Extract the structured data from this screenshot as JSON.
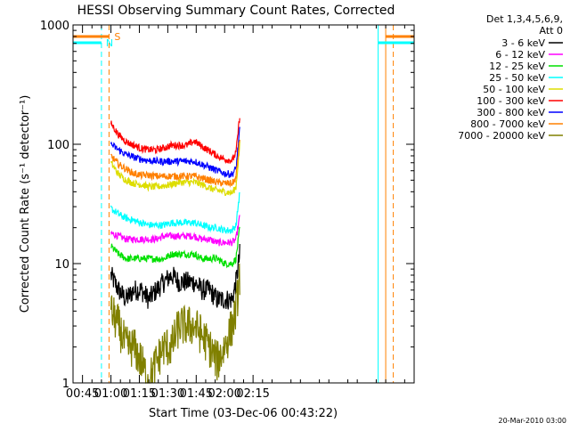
{
  "chart_data": {
    "type": "line",
    "title": "HESSI Observing Summary Count Rates, Corrected",
    "xlabel": "Start Time (03-Dec-06 00:43:22)",
    "ylabel": "Corrected Count Rate (s⁻¹ detector⁻¹)",
    "y_scale": "log",
    "ylim": [
      1,
      1000
    ],
    "xlim_minutes": [
      40,
      220
    ],
    "x_ticks": [
      {
        "label": "00:45",
        "minutes": 45
      },
      {
        "label": "01:00",
        "minutes": 60
      },
      {
        "label": "01:15",
        "minutes": 75
      },
      {
        "label": "01:30",
        "minutes": 90
      },
      {
        "label": "01:45",
        "minutes": 105
      },
      {
        "label": "02:00",
        "minutes": 120
      },
      {
        "label": "02:15",
        "minutes": 135
      }
    ],
    "y_ticks": [
      {
        "label": "1",
        "value": 1
      },
      {
        "label": "10",
        "value": 10
      },
      {
        "label": "100",
        "value": 100
      },
      {
        "label": "1000",
        "value": 1000
      }
    ],
    "legend_header": [
      "Det 1,3,4,5,6,9,",
      "Att 0"
    ],
    "legend_position": "right",
    "grid": false,
    "footer_text": "20-Mar-2010 03:00",
    "flags": {
      "saa_letter": "S",
      "night_letter": "N"
    },
    "series": [
      {
        "name": "3 - 6 keV",
        "color": "#000000",
        "points": [
          [
            60,
            8
          ],
          [
            64,
            6
          ],
          [
            68,
            5
          ],
          [
            72,
            6
          ],
          [
            76,
            6
          ],
          [
            80,
            5
          ],
          [
            84,
            6
          ],
          [
            88,
            7
          ],
          [
            92,
            8
          ],
          [
            96,
            7
          ],
          [
            100,
            7
          ],
          [
            104,
            7
          ],
          [
            108,
            6
          ],
          [
            112,
            6
          ],
          [
            116,
            5
          ],
          [
            120,
            5
          ],
          [
            124,
            5
          ],
          [
            126,
            7
          ],
          [
            128,
            12
          ]
        ]
      },
      {
        "name": "6 - 12 keV",
        "color": "#ff00ff",
        "points": [
          [
            60,
            18
          ],
          [
            64,
            17
          ],
          [
            68,
            16
          ],
          [
            72,
            16
          ],
          [
            76,
            16
          ],
          [
            80,
            16
          ],
          [
            84,
            16
          ],
          [
            88,
            17
          ],
          [
            92,
            17
          ],
          [
            96,
            17
          ],
          [
            100,
            17
          ],
          [
            104,
            17
          ],
          [
            108,
            16
          ],
          [
            112,
            16
          ],
          [
            116,
            15
          ],
          [
            120,
            15
          ],
          [
            124,
            15
          ],
          [
            126,
            16
          ],
          [
            128,
            25
          ]
        ]
      },
      {
        "name": "12 - 25 keV",
        "color": "#00e000",
        "points": [
          [
            60,
            14
          ],
          [
            64,
            12
          ],
          [
            68,
            11
          ],
          [
            72,
            11
          ],
          [
            76,
            11
          ],
          [
            80,
            11
          ],
          [
            84,
            11
          ],
          [
            88,
            11
          ],
          [
            92,
            12
          ],
          [
            96,
            12
          ],
          [
            100,
            12
          ],
          [
            104,
            12
          ],
          [
            108,
            11
          ],
          [
            112,
            11
          ],
          [
            116,
            11
          ],
          [
            120,
            10
          ],
          [
            124,
            10
          ],
          [
            126,
            11
          ],
          [
            128,
            20
          ]
        ]
      },
      {
        "name": "25 - 50 keV",
        "color": "#00ffff",
        "points": [
          [
            60,
            29
          ],
          [
            64,
            26
          ],
          [
            68,
            24
          ],
          [
            72,
            23
          ],
          [
            76,
            22
          ],
          [
            80,
            21
          ],
          [
            84,
            21
          ],
          [
            88,
            21
          ],
          [
            92,
            22
          ],
          [
            96,
            22
          ],
          [
            100,
            22
          ],
          [
            104,
            22
          ],
          [
            108,
            21
          ],
          [
            112,
            20
          ],
          [
            116,
            20
          ],
          [
            120,
            19
          ],
          [
            124,
            19
          ],
          [
            126,
            21
          ],
          [
            128,
            40
          ]
        ]
      },
      {
        "name": "50 - 100 keV",
        "color": "#dddd00",
        "points": [
          [
            60,
            70
          ],
          [
            64,
            56
          ],
          [
            68,
            50
          ],
          [
            72,
            47
          ],
          [
            76,
            46
          ],
          [
            80,
            44
          ],
          [
            84,
            44
          ],
          [
            88,
            45
          ],
          [
            92,
            46
          ],
          [
            96,
            48
          ],
          [
            100,
            48
          ],
          [
            104,
            48
          ],
          [
            108,
            46
          ],
          [
            112,
            43
          ],
          [
            116,
            41
          ],
          [
            120,
            40
          ],
          [
            124,
            39
          ],
          [
            126,
            44
          ],
          [
            128,
            100
          ]
        ]
      },
      {
        "name": "100 - 300 keV",
        "color": "#ff0000",
        "points": [
          [
            60,
            150
          ],
          [
            64,
            120
          ],
          [
            68,
            105
          ],
          [
            72,
            98
          ],
          [
            76,
            92
          ],
          [
            80,
            90
          ],
          [
            84,
            90
          ],
          [
            88,
            93
          ],
          [
            92,
            98
          ],
          [
            96,
            98
          ],
          [
            100,
            98
          ],
          [
            104,
            106
          ],
          [
            108,
            96
          ],
          [
            112,
            88
          ],
          [
            116,
            80
          ],
          [
            120,
            75
          ],
          [
            124,
            73
          ],
          [
            126,
            85
          ],
          [
            128,
            175
          ]
        ]
      },
      {
        "name": "300 - 800 keV",
        "color": "#0000ff",
        "points": [
          [
            60,
            100
          ],
          [
            64,
            90
          ],
          [
            68,
            82
          ],
          [
            72,
            78
          ],
          [
            76,
            75
          ],
          [
            80,
            73
          ],
          [
            84,
            72
          ],
          [
            88,
            72
          ],
          [
            92,
            72
          ],
          [
            96,
            72
          ],
          [
            100,
            72
          ],
          [
            104,
            72
          ],
          [
            108,
            68
          ],
          [
            112,
            64
          ],
          [
            116,
            60
          ],
          [
            120,
            57
          ],
          [
            124,
            56
          ],
          [
            126,
            63
          ],
          [
            128,
            135
          ]
        ]
      },
      {
        "name": "800 - 7000 keV",
        "color": "#ff8000",
        "points": [
          [
            60,
            80
          ],
          [
            64,
            68
          ],
          [
            68,
            62
          ],
          [
            72,
            57
          ],
          [
            76,
            55
          ],
          [
            80,
            55
          ],
          [
            84,
            54
          ],
          [
            88,
            54
          ],
          [
            92,
            54
          ],
          [
            96,
            54
          ],
          [
            100,
            54
          ],
          [
            104,
            54
          ],
          [
            108,
            52
          ],
          [
            112,
            50
          ],
          [
            116,
            48
          ],
          [
            120,
            47
          ],
          [
            124,
            47
          ],
          [
            126,
            52
          ],
          [
            128,
            115
          ]
        ]
      },
      {
        "name": "7000 - 20000 keV",
        "color": "#808000",
        "points": [
          [
            60,
            4
          ],
          [
            64,
            3
          ],
          [
            68,
            2
          ],
          [
            72,
            2
          ],
          [
            76,
            1.5
          ],
          [
            80,
            1
          ],
          [
            84,
            1.5
          ],
          [
            88,
            2
          ],
          [
            92,
            2
          ],
          [
            96,
            3
          ],
          [
            100,
            3
          ],
          [
            104,
            3
          ],
          [
            108,
            2.5
          ],
          [
            112,
            2
          ],
          [
            116,
            1.5
          ],
          [
            120,
            2
          ],
          [
            124,
            3
          ],
          [
            126,
            4
          ],
          [
            128,
            8
          ]
        ]
      }
    ]
  },
  "colors": {
    "saa_bar": "#ff8000",
    "night_bar": "#00ffff",
    "saa_line": "#ff8000",
    "night_line": "#00ffff"
  }
}
